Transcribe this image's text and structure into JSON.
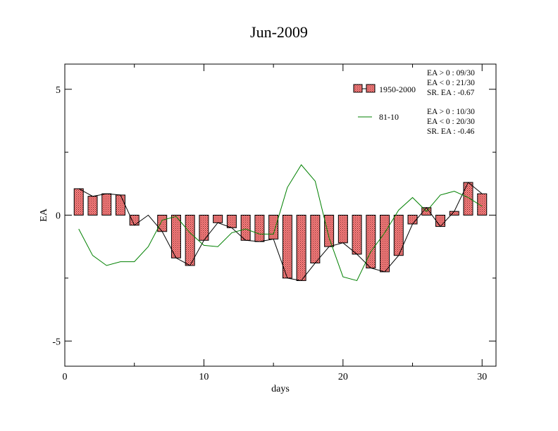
{
  "chart_data": {
    "type": "bar",
    "title": "Jun-2009",
    "xlabel": "days",
    "ylabel": "EA",
    "xlim": [
      0,
      31
    ],
    "ylim": [
      -6,
      6
    ],
    "xticks": [
      0,
      10,
      20,
      30
    ],
    "yticks": [
      5,
      0,
      -5
    ],
    "x": [
      1,
      2,
      3,
      4,
      5,
      6,
      7,
      8,
      9,
      10,
      11,
      12,
      13,
      14,
      15,
      16,
      17,
      18,
      19,
      20,
      21,
      22,
      23,
      24,
      25,
      26,
      27,
      28,
      29,
      30
    ],
    "series": [
      {
        "name": "1950-2000",
        "kind": "bar",
        "color": "#ff8080",
        "values": [
          1.05,
          0.75,
          0.85,
          0.8,
          -0.4,
          0.0,
          -0.65,
          -1.7,
          -2.0,
          -1.0,
          -0.3,
          -0.5,
          -1.0,
          -1.05,
          -0.95,
          -2.5,
          -2.6,
          -1.9,
          -1.25,
          -1.1,
          -1.55,
          -2.1,
          -2.25,
          -1.6,
          -0.35,
          0.3,
          -0.45,
          0.15,
          1.3,
          0.85
        ]
      },
      {
        "name": "81-10",
        "kind": "line",
        "color": "#008000",
        "values": [
          -0.55,
          -1.6,
          -2.0,
          -1.85,
          -1.85,
          -1.25,
          -0.2,
          -0.05,
          -0.7,
          -1.2,
          -1.25,
          -0.7,
          -0.55,
          -0.75,
          -0.75,
          1.1,
          2.0,
          1.35,
          -0.9,
          -2.45,
          -2.6,
          -1.45,
          -0.7,
          0.2,
          0.7,
          0.15,
          0.8,
          0.95,
          0.7,
          0.35
        ]
      }
    ],
    "stats": [
      [
        "EA > 0 : 09/30",
        "EA < 0 : 21/30",
        "SR. EA : -0.67"
      ],
      [
        "EA > 0 : 10/30",
        "EA < 0 : 20/30",
        "SR. EA : -0.46"
      ]
    ],
    "legend_position": "top-right",
    "grid": false
  }
}
